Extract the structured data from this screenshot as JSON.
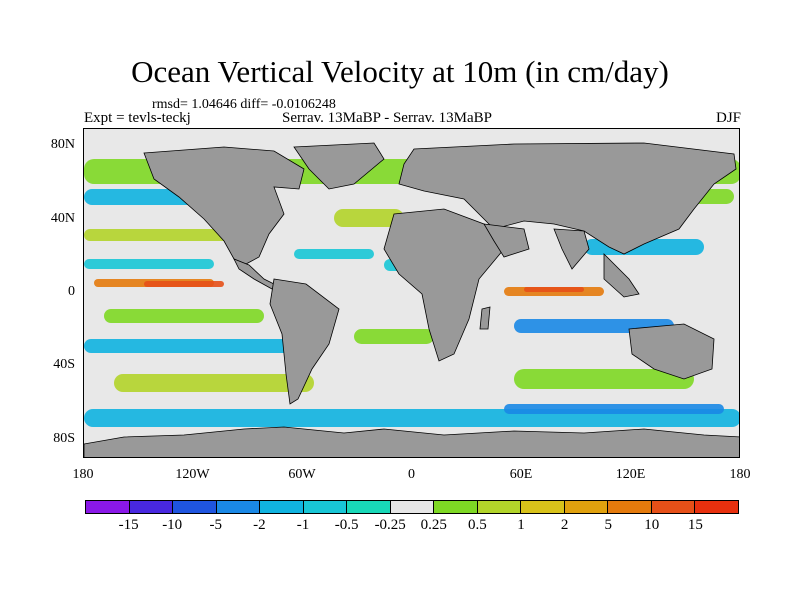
{
  "title": "Ocean Vertical Velocity at 10m (in cm/day)",
  "stats": "rmsd= 1.04646 diff= -0.0106248",
  "experiment": "Expt = tevls-teckj",
  "difference_label": "Serrav.   13MaBP - Serrav.   13MaBP",
  "season": "DJF",
  "lat_labels": [
    {
      "text": "80N",
      "lat": 80
    },
    {
      "text": "40N",
      "lat": 40
    },
    {
      "text": "0",
      "lat": 0
    },
    {
      "text": "40S",
      "lat": -40
    },
    {
      "text": "80S",
      "lat": -80
    }
  ],
  "lon_labels": [
    {
      "text": "180",
      "lon": -180
    },
    {
      "text": "120W",
      "lon": -120
    },
    {
      "text": "60W",
      "lon": -60
    },
    {
      "text": "0",
      "lon": 0
    },
    {
      "text": "60E",
      "lon": 60
    },
    {
      "text": "120E",
      "lon": 120
    },
    {
      "text": "180",
      "lon": 180
    }
  ],
  "colorbar": {
    "levels": [
      "-15",
      "-10",
      "-5",
      "-2",
      "-1",
      "-0.5",
      "-0.25",
      "0.25",
      "0.5",
      "1",
      "2",
      "5",
      "10",
      "15"
    ],
    "colors": [
      "#8a18e8",
      "#4828e0",
      "#1f55e0",
      "#1a88e6",
      "#10b3e0",
      "#18c6d6",
      "#18d8b8",
      "#e6e6e6",
      "#7ed824",
      "#b2d42a",
      "#d8c21a",
      "#e0a10e",
      "#e47a0c",
      "#e65018",
      "#e8300e"
    ]
  },
  "map": {
    "extent_lon": [
      -180,
      180
    ],
    "extent_lat": [
      -90,
      90
    ],
    "land_color": "#999999",
    "ocean_background": "#e6e6e6"
  }
}
